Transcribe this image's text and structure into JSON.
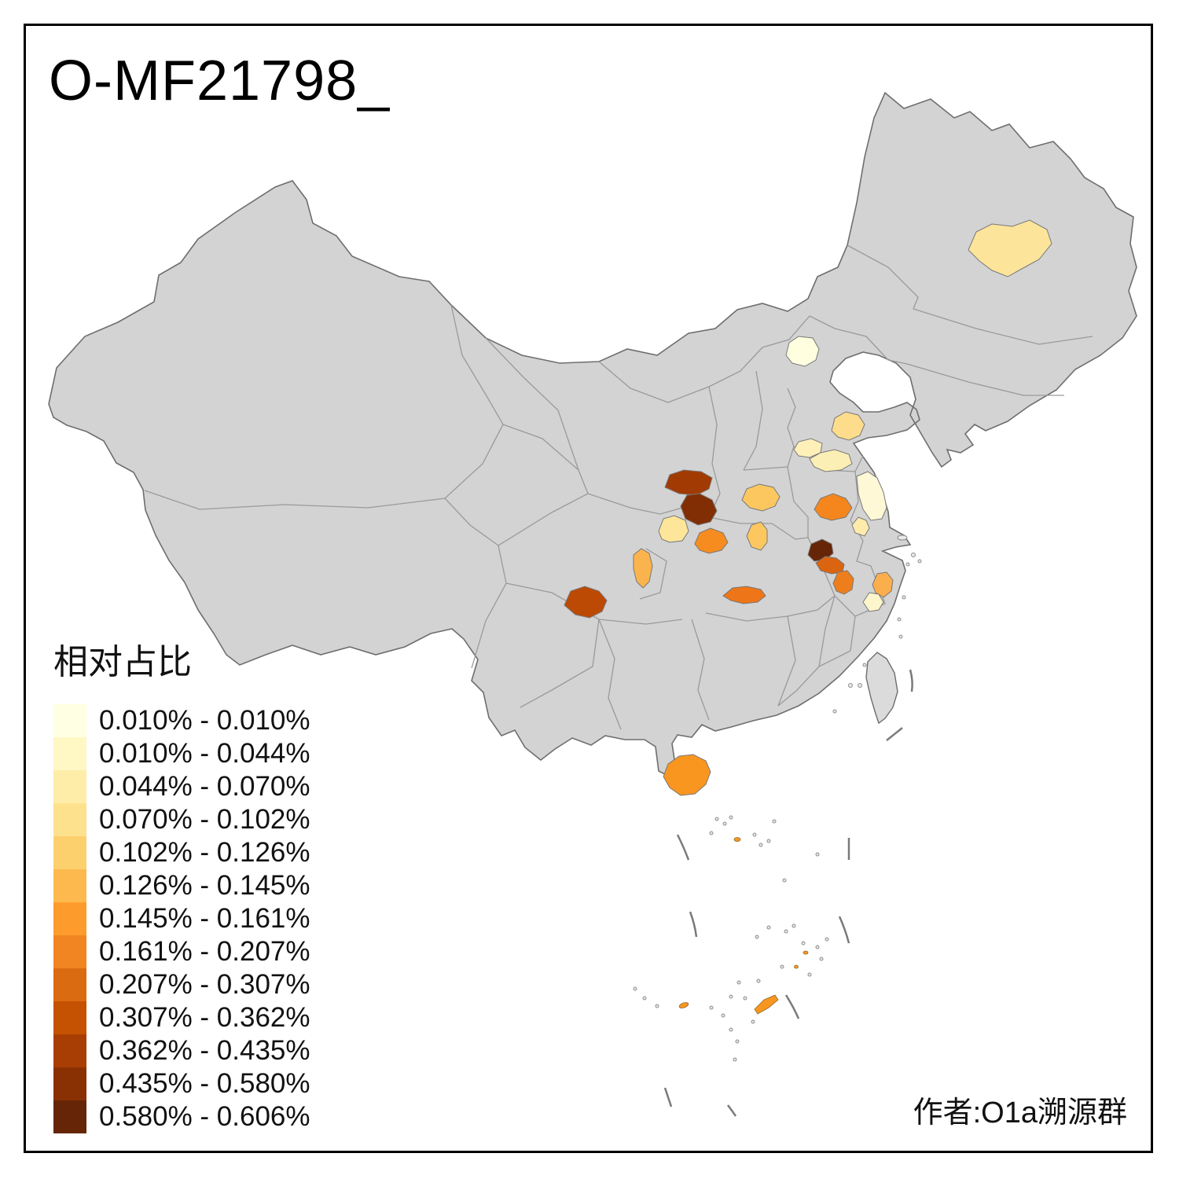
{
  "title": "O-MF21798_",
  "attribution": "作者:O1a溯源群",
  "legend": {
    "title": "相对占比",
    "items": [
      {
        "color": "#FFFFE3",
        "label": "0.010% - 0.010%"
      },
      {
        "color": "#FFF7C4",
        "label": "0.010% - 0.044%"
      },
      {
        "color": "#FEEDA8",
        "label": "0.044% - 0.070%"
      },
      {
        "color": "#FEE18D",
        "label": "0.070% - 0.102%"
      },
      {
        "color": "#FDD06E",
        "label": "0.102% - 0.126%"
      },
      {
        "color": "#FDB94E",
        "label": "0.126% - 0.145%"
      },
      {
        "color": "#FD9C2D",
        "label": "0.145% - 0.161%"
      },
      {
        "color": "#F08522",
        "label": "0.161% - 0.207%"
      },
      {
        "color": "#DB6B10",
        "label": "0.207% - 0.307%"
      },
      {
        "color": "#C55103",
        "label": "0.307% - 0.362%"
      },
      {
        "color": "#A83E03",
        "label": "0.362% - 0.435%"
      },
      {
        "color": "#8A3104",
        "label": "0.435% - 0.580%"
      },
      {
        "color": "#662506",
        "label": "0.580% - 0.606%"
      }
    ]
  },
  "map": {
    "base_fill": "#D3D3D3",
    "outline_color": "#6E6E6E",
    "province_line_color": "#9A9A9A",
    "regions": {
      "mainland": {
        "color": "#D3D3D3",
        "range": ""
      },
      "taiwan": {
        "color": "#DBDBDB",
        "range": ""
      },
      "ne-heilongjiang": {
        "color": "#FCE49B",
        "range": "0.070% - 0.102%"
      },
      "beijing": {
        "color": "#FFFFE0",
        "range": "0.010% - 0.010%"
      },
      "jinan": {
        "color": "#FDDC8C",
        "range": "0.102% - 0.126%"
      },
      "shandong-west": {
        "color": "#FEF0B8",
        "range": "0.044% - 0.070%"
      },
      "shandong-south": {
        "color": "#FCEFB6",
        "range": "0.044% - 0.070%"
      },
      "jiangsu-coast": {
        "color": "#FEF8D6",
        "range": "0.010% - 0.044%"
      },
      "henan-north": {
        "color": "#FDC760",
        "range": "0.126% - 0.145%"
      },
      "henan-south": {
        "color": "#FDC760",
        "range": "0.126% - 0.145%"
      },
      "shaanxi-north": {
        "color": "#A23A03",
        "range": "0.362% - 0.435%"
      },
      "xian": {
        "color": "#822E05",
        "range": "0.435% - 0.580%"
      },
      "hanzhong": {
        "color": "#FDE699",
        "range": "0.070% - 0.102%"
      },
      "ankang": {
        "color": "#F68C1F",
        "range": "0.161% - 0.207%"
      },
      "sichuan-ne": {
        "color": "#FBB44D",
        "range": "0.126% - 0.145%"
      },
      "sichuan-south": {
        "color": "#BC4A04",
        "range": "0.307% - 0.362%"
      },
      "hubei-strip": {
        "color": "#EE7518",
        "range": "0.161% - 0.207%"
      },
      "wuhan-dark": {
        "color": "#662506",
        "range": "0.580% - 0.606%"
      },
      "hubei-east": {
        "color": "#DB6410",
        "range": "0.207% - 0.307%"
      },
      "hefei": {
        "color": "#F5861D",
        "range": "0.161% - 0.207%"
      },
      "chuzhou-pale": {
        "color": "#FEEBAC",
        "range": "0.044% - 0.070%"
      },
      "anhui-south": {
        "color": "#EE7E1C",
        "range": "0.161% - 0.207%"
      },
      "zhejiang-orange": {
        "color": "#FBAE4C",
        "range": "0.126% - 0.145%"
      },
      "zhejiang-pale": {
        "color": "#FDF5CC",
        "range": "0.010% - 0.044%"
      },
      "hainan": {
        "color": "#F9961F",
        "range": "0.145% - 0.161%"
      },
      "islets": {
        "color": "#F9961F",
        "range": "0.145% - 0.161%"
      }
    }
  },
  "chart_data": {
    "type": "heatmap",
    "title": "O-MF21798_",
    "legend_title": "相对占比",
    "legend_position": "bottom-left",
    "bins": [
      {
        "range": "0.010% - 0.010%",
        "color": "#FFFFE3"
      },
      {
        "range": "0.010% - 0.044%",
        "color": "#FFF7C4"
      },
      {
        "range": "0.044% - 0.070%",
        "color": "#FEEDA8"
      },
      {
        "range": "0.070% - 0.102%",
        "color": "#FEE18D"
      },
      {
        "range": "0.102% - 0.126%",
        "color": "#FDD06E"
      },
      {
        "range": "0.126% - 0.145%",
        "color": "#FDB94E"
      },
      {
        "range": "0.145% - 0.161%",
        "color": "#FD9C2D"
      },
      {
        "range": "0.161% - 0.207%",
        "color": "#F08522"
      },
      {
        "range": "0.207% - 0.307%",
        "color": "#DB6B10"
      },
      {
        "range": "0.307% - 0.362%",
        "color": "#C55103"
      },
      {
        "range": "0.362% - 0.435%",
        "color": "#A83E03"
      },
      {
        "range": "0.435% - 0.580%",
        "color": "#8A3104"
      },
      {
        "range": "0.580% - 0.606%",
        "color": "#662506"
      }
    ],
    "observations": [
      {
        "region": "ne-heilongjiang",
        "bin": "0.070% - 0.102%"
      },
      {
        "region": "beijing",
        "bin": "0.010% - 0.010%"
      },
      {
        "region": "jinan",
        "bin": "0.102% - 0.126%"
      },
      {
        "region": "shandong-west",
        "bin": "0.044% - 0.070%"
      },
      {
        "region": "shandong-south",
        "bin": "0.044% - 0.070%"
      },
      {
        "region": "jiangsu-coast",
        "bin": "0.010% - 0.044%"
      },
      {
        "region": "henan-north",
        "bin": "0.126% - 0.145%"
      },
      {
        "region": "henan-south",
        "bin": "0.126% - 0.145%"
      },
      {
        "region": "shaanxi-north",
        "bin": "0.362% - 0.435%"
      },
      {
        "region": "xian",
        "bin": "0.435% - 0.580%"
      },
      {
        "region": "hanzhong",
        "bin": "0.070% - 0.102%"
      },
      {
        "region": "ankang",
        "bin": "0.161% - 0.207%"
      },
      {
        "region": "sichuan-ne",
        "bin": "0.126% - 0.145%"
      },
      {
        "region": "sichuan-south",
        "bin": "0.307% - 0.362%"
      },
      {
        "region": "hubei-strip",
        "bin": "0.161% - 0.207%"
      },
      {
        "region": "wuhan-dark",
        "bin": "0.580% - 0.606%"
      },
      {
        "region": "hubei-east",
        "bin": "0.207% - 0.307%"
      },
      {
        "region": "hefei",
        "bin": "0.161% - 0.207%"
      },
      {
        "region": "chuzhou-pale",
        "bin": "0.044% - 0.070%"
      },
      {
        "region": "anhui-south",
        "bin": "0.161% - 0.207%"
      },
      {
        "region": "zhejiang-orange",
        "bin": "0.126% - 0.145%"
      },
      {
        "region": "zhejiang-pale",
        "bin": "0.010% - 0.044%"
      },
      {
        "region": "hainan",
        "bin": "0.145% - 0.161%"
      },
      {
        "region": "islets",
        "bin": "0.145% - 0.161%"
      }
    ]
  }
}
